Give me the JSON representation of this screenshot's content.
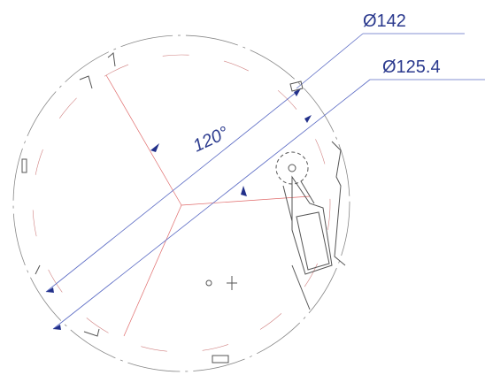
{
  "dimensions": [
    {
      "label": "Ø142"
    },
    {
      "label": "Ø125.4"
    }
  ],
  "angle": {
    "label": "120°"
  }
}
